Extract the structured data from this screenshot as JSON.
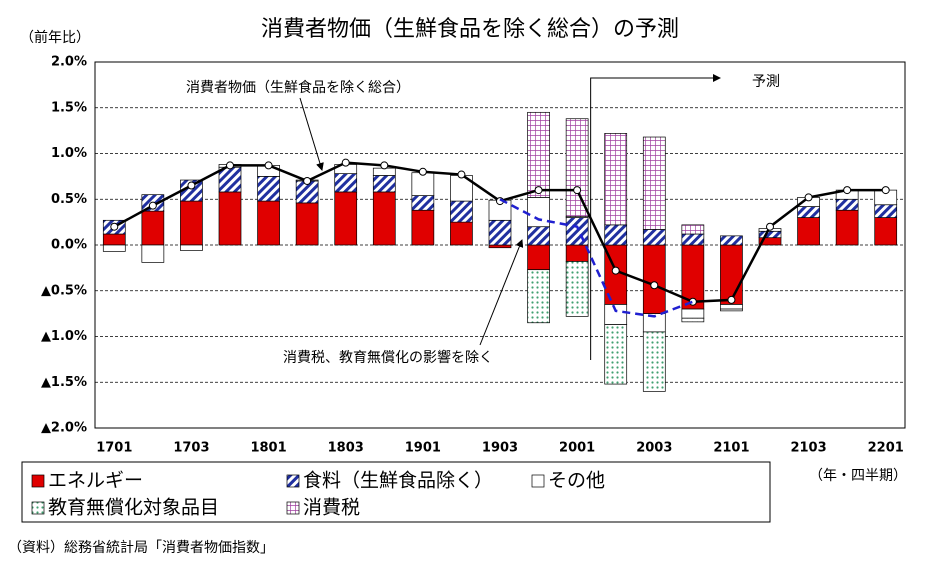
{
  "chart_data": {
    "type": "bar",
    "title": "消費者物価（生鮮食品を除く総合）の予測",
    "y_label": "（前年比）",
    "x_label": "（年・四半期）",
    "forecast_label": "予測",
    "source": "（資料）総務省統計局「消費者物価指数」",
    "categories": [
      "1701",
      null,
      "1703",
      null,
      "1801",
      null,
      "1803",
      null,
      "1901",
      null,
      "1903",
      null,
      "2001",
      null,
      "2003",
      null,
      "2101",
      null,
      "2103",
      null,
      "2201"
    ],
    "series": [
      {
        "name": "エネルギー",
        "color": "#e00000",
        "values": [
          0.12,
          0.37,
          0.48,
          0.58,
          0.48,
          0.46,
          0.58,
          0.58,
          0.38,
          0.25,
          -0.03,
          -0.27,
          -0.18,
          -0.65,
          -0.75,
          -0.7,
          -0.65,
          0.08,
          0.3,
          0.38,
          0.3
        ]
      },
      {
        "name": "食料（生鮮食品除く）",
        "color": "#2030a0",
        "values": [
          0.15,
          0.18,
          0.23,
          0.27,
          0.27,
          0.24,
          0.2,
          0.18,
          0.16,
          0.23,
          0.27,
          0.2,
          0.3,
          0.22,
          0.17,
          0.12,
          0.1,
          0.07,
          0.12,
          0.12,
          0.14
        ]
      },
      {
        "name": "その他",
        "color": "#ffffff",
        "values": [
          -0.07,
          -0.19,
          -0.06,
          0.03,
          0.12,
          0.01,
          0.1,
          0.08,
          0.25,
          0.28,
          0.22,
          0.32,
          0.01,
          -0.22,
          -0.2,
          -0.1,
          -0.05,
          0.03,
          0.1,
          0.1,
          0.16
        ]
      },
      {
        "name": "教育無償化対象品目",
        "color": "#40a070",
        "values": [
          null,
          null,
          null,
          null,
          null,
          null,
          null,
          null,
          null,
          null,
          null,
          -0.58,
          -0.6,
          -0.65,
          -0.65,
          -0.04,
          -0.02,
          null,
          null,
          null,
          null
        ]
      },
      {
        "name": "消費税",
        "color": "#a040a0",
        "values": [
          null,
          null,
          null,
          null,
          null,
          null,
          null,
          null,
          null,
          null,
          null,
          0.93,
          1.07,
          1.0,
          1.01,
          0.1,
          null,
          null,
          null,
          null,
          null
        ]
      },
      {
        "name": "消費者物価（生鮮食品を除く総合）",
        "type": "line",
        "color": "#000000",
        "values": [
          0.2,
          0.43,
          0.65,
          0.87,
          0.87,
          0.7,
          0.9,
          0.87,
          0.8,
          0.77,
          0.48,
          0.6,
          0.6,
          -0.28,
          -0.44,
          -0.62,
          -0.6,
          0.2,
          0.52,
          0.6,
          0.6
        ]
      },
      {
        "name": "消費税、教育無償化の影響を除く",
        "type": "line",
        "dashed": true,
        "color": "#2020d0",
        "values": [
          null,
          null,
          null,
          null,
          null,
          null,
          null,
          null,
          null,
          null,
          0.5,
          0.28,
          0.2,
          -0.72,
          -0.78,
          -0.62,
          null,
          null,
          null,
          null,
          null
        ]
      }
    ],
    "ylim": [
      -2.0,
      2.0
    ],
    "yticks": [
      {
        "value": 2.0,
        "label": "2.0%"
      },
      {
        "value": 1.5,
        "label": "1.5%"
      },
      {
        "value": 1.0,
        "label": "1.0%"
      },
      {
        "value": 0.5,
        "label": "0.5%"
      },
      {
        "value": 0,
        "label": "0.0%"
      },
      {
        "value": -0.5,
        "label": "▲0.5%"
      },
      {
        "value": -1.0,
        "label": "▲1.0%"
      },
      {
        "value": -1.5,
        "label": "▲1.5%"
      },
      {
        "value": -2.0,
        "label": "▲2.0%"
      }
    ],
    "grid": true
  }
}
